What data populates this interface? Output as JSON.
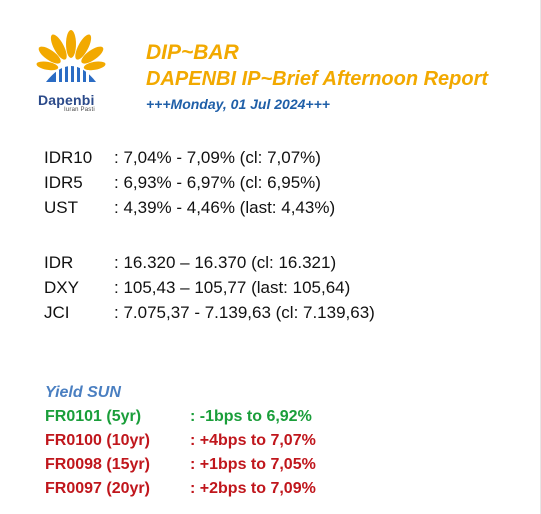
{
  "header": {
    "logo_word": "Dapenbi",
    "logo_tagline": "Iuran Pasti",
    "title": "DIP~BAR",
    "subtitle": "DAPENBI IP~Brief Afternoon Report",
    "date_line": "+++Monday, 01 Jul 2024+++"
  },
  "rates": [
    {
      "label": "IDR10",
      "value": ": 7,04% - 7,09% (cl: 7,07%)"
    },
    {
      "label": "IDR5",
      "value": ": 6,93% - 6,97% (cl: 6,95%)"
    },
    {
      "label": "UST",
      "value": ": 4,39% - 4,46% (last: 4,43%)"
    }
  ],
  "markets": [
    {
      "label": "IDR",
      "value": ": 16.320 – 16.370 (cl: 16.321)"
    },
    {
      "label": "DXY",
      "value": ": 105,43 – 105,77 (last: 105,64)"
    },
    {
      "label": "JCI",
      "value": ": 7.075,37 - 7.139,63 (cl: 7.139,63)"
    }
  ],
  "yield_sun": {
    "title": "Yield SUN",
    "items": [
      {
        "label": "FR0101 (5yr)",
        "value": ": -1bps to 6,92%",
        "color": "#1a9e3a"
      },
      {
        "label": "FR0100 (10yr)",
        "value": ": +4bps to 7,07%",
        "color": "#c0161c"
      },
      {
        "label": "FR0098 (15yr)",
        "value": ": +1bps to 7,05%",
        "color": "#c0161c"
      },
      {
        "label": "FR0097 (20yr)",
        "value": ": +2bps to 7,09%",
        "color": "#c0161c"
      }
    ]
  },
  "colors": {
    "brand_orange": "#f2a900",
    "brand_blue": "#1f5fa8",
    "logo_blue": "#2b4a8a",
    "yield_title_blue": "#4a7fc1",
    "down_green": "#1a9e3a",
    "up_red": "#c0161c"
  }
}
